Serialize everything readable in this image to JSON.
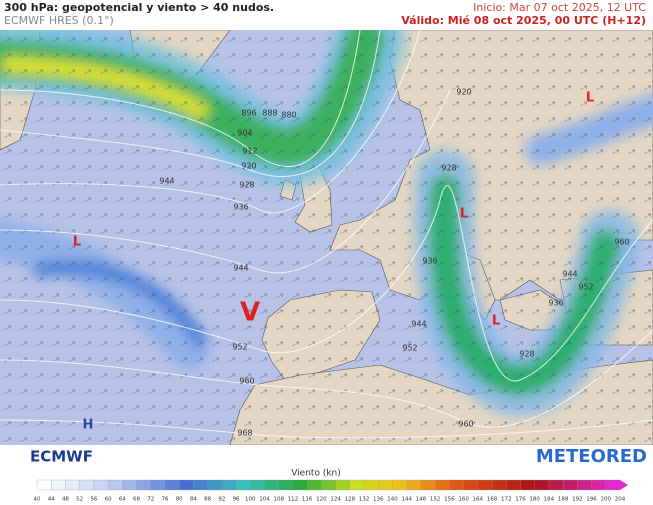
{
  "header": {
    "title": "300 hPa: geopotencial y viento > 40 nudos.",
    "model": "ECMWF HRES (0.1°)",
    "init": "Inicio: Mar 07 oct 2025, 12 UTC",
    "valid": "Válido: Mié 08 oct 2025, 00 UTC (H+12)"
  },
  "map": {
    "contour_labels": [
      "896",
      "888",
      "880",
      "904",
      "912",
      "920",
      "928",
      "936",
      "944",
      "944",
      "952",
      "960",
      "968",
      "920",
      "928",
      "936",
      "944",
      "952",
      "960",
      "944",
      "952",
      "936",
      "928",
      "960"
    ],
    "pressure_centers": [
      "L",
      "L",
      "L",
      "L",
      "H"
    ],
    "marker": "V"
  },
  "logos": {
    "left": "ECMWF",
    "right": "METEORED"
  },
  "legend": {
    "title": "Viento (kn)",
    "ticks": [
      40,
      44,
      48,
      52,
      56,
      60,
      64,
      68,
      72,
      76,
      80,
      84,
      88,
      92,
      96,
      100,
      104,
      108,
      112,
      116,
      120,
      124,
      128,
      132,
      136,
      140,
      144,
      148,
      152,
      156,
      160,
      164,
      168,
      172,
      176,
      180,
      184,
      188,
      192,
      196,
      200,
      204
    ]
  }
}
